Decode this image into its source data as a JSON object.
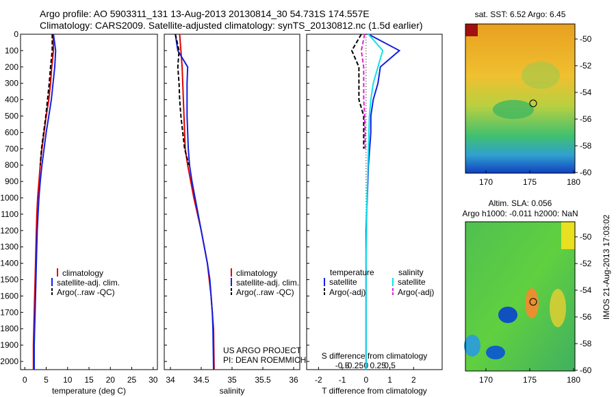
{
  "header": {
    "line1": "Argo profile: AO 5903311_131 13-Aug-2013 20130814_30 54.731S 174.557E",
    "line2": "Climatology: CARS2009. Satellite-adjusted climatology: synTS_20130812.nc (1.5d earlier)"
  },
  "colors": {
    "climatology": "#dd0000",
    "satellite": "#1020e0",
    "argo": "#000000",
    "satellite_s": "#10e0e8",
    "argo_s": "#e020d0"
  },
  "depth_ticks": [
    "0",
    "100",
    "200",
    "300",
    "400",
    "500",
    "600",
    "700",
    "800",
    "900",
    "1000",
    "1100",
    "1200",
    "1300",
    "1400",
    "1500",
    "1600",
    "1700",
    "1800",
    "1900",
    "2000"
  ],
  "panel_temperature": {
    "xlabel": "temperature (deg C)",
    "xticks": [
      "0",
      "5",
      "10",
      "15",
      "20",
      "25",
      "30"
    ],
    "legend": [
      "climatology",
      "satellite-adj. clim.",
      "Argo(..raw -QC)"
    ]
  },
  "panel_salinity": {
    "xlabel": "salinity",
    "xticks": [
      "34",
      "34.5",
      "35",
      "35.5",
      "36"
    ],
    "legend": [
      "climatology",
      "satellite-adj. clim.",
      "Argo(..raw -QC)"
    ],
    "credit1": "US ARGO PROJECT",
    "credit2": "PI: DEAN ROEMMICH"
  },
  "panel_difference": {
    "xlabel": "T difference from climatology",
    "s_label": "S difference from climatology",
    "t_ticks": [
      "-2",
      "-1",
      "0",
      "1",
      "2"
    ],
    "s_ticks": [
      "-0.5",
      "-0.25",
      "0",
      "0.25",
      "0.5"
    ],
    "legend_t_title": "temperature",
    "legend_s_title": "salinity",
    "legend_t": [
      "satellite",
      "Argo(-adj)"
    ],
    "legend_s": [
      "satellite",
      "Argo(-adj)"
    ]
  },
  "map_sst": {
    "title": "sat. SST: 6.52  Argo: 6.45",
    "yticks": [
      "-50",
      "-52",
      "-54",
      "-56",
      "-58",
      "-60"
    ],
    "xticks": [
      "170",
      "175",
      "180"
    ]
  },
  "map_sla": {
    "title1": "Altim. SLA: 0.056",
    "title2": "Argo h1000: -0.011  h2000: NaN",
    "yticks": [
      "-50",
      "-52",
      "-54",
      "-56",
      "-58",
      "-60"
    ],
    "xticks": [
      "170",
      "175",
      "180"
    ]
  },
  "stamp": "IMOS 21-Aug-2013 17:03:02",
  "chart_data": [
    {
      "type": "line",
      "title": "",
      "xlabel": "temperature (deg C)",
      "ylabel": "",
      "xlim": [
        -1,
        31
      ],
      "ylim": [
        2050,
        0
      ],
      "series": [
        {
          "name": "climatology",
          "x": [
            6.6,
            6.7,
            6.3,
            6.0,
            5.6,
            5.0,
            4.5,
            4.0,
            3.6,
            3.3,
            3.0,
            2.8,
            2.7,
            2.5,
            2.4,
            2.3,
            2.2,
            2.1,
            2.0,
            2.0
          ],
          "y": [
            0,
            100,
            200,
            300,
            400,
            500,
            600,
            700,
            800,
            900,
            1000,
            1100,
            1200,
            1400,
            1500,
            1600,
            1700,
            1800,
            1900,
            2050
          ]
        },
        {
          "name": "satellite-adj. clim.",
          "x": [
            6.7,
            7.2,
            7.0,
            6.6,
            6.2,
            5.6,
            5.0,
            4.5,
            4.0,
            3.6,
            3.3,
            3.1,
            2.9,
            2.7,
            2.6,
            2.5,
            2.4,
            2.3,
            2.2,
            2.2
          ],
          "y": [
            0,
            100,
            200,
            300,
            400,
            500,
            600,
            700,
            800,
            900,
            1000,
            1100,
            1200,
            1400,
            1500,
            1600,
            1700,
            1800,
            1900,
            2050
          ]
        },
        {
          "name": "Argo(..raw -QC)",
          "x": [
            6.4,
            6.4,
            6.0,
            5.7,
            5.3,
            4.9,
            4.4,
            3.9,
            3.6
          ],
          "y": [
            0,
            100,
            200,
            300,
            400,
            500,
            600,
            700,
            800
          ]
        }
      ]
    },
    {
      "type": "line",
      "title": "",
      "xlabel": "salinity",
      "ylabel": "",
      "xlim": [
        33.9,
        36.1
      ],
      "ylim": [
        2050,
        0
      ],
      "series": [
        {
          "name": "climatology",
          "x": [
            34.15,
            34.17,
            34.19,
            34.2,
            34.21,
            34.22,
            34.23,
            34.24,
            34.28,
            34.33,
            34.38,
            34.44,
            34.5,
            34.55,
            34.6,
            34.63,
            34.66,
            34.68,
            34.7,
            34.71
          ],
          "y": [
            0,
            100,
            200,
            300,
            400,
            500,
            600,
            700,
            800,
            900,
            1000,
            1100,
            1200,
            1300,
            1400,
            1500,
            1600,
            1700,
            1800,
            2050
          ]
        },
        {
          "name": "satellite-adj. clim.",
          "x": [
            34.08,
            34.12,
            34.28,
            34.27,
            34.27,
            34.27,
            34.28,
            34.29,
            34.31,
            34.35,
            34.4,
            34.45,
            34.5,
            34.55,
            34.6,
            34.64,
            34.66,
            34.68,
            34.69,
            34.7
          ],
          "y": [
            0,
            100,
            200,
            300,
            400,
            500,
            600,
            700,
            800,
            900,
            1000,
            1100,
            1200,
            1300,
            1400,
            1500,
            1600,
            1700,
            1800,
            2050
          ]
        },
        {
          "name": "Argo(..raw -QC)",
          "x": [
            34.08,
            34.14,
            34.12,
            34.14,
            34.15,
            34.17,
            34.2,
            34.23,
            34.3
          ],
          "y": [
            0,
            100,
            200,
            300,
            400,
            500,
            600,
            700,
            800
          ]
        }
      ]
    },
    {
      "type": "line",
      "title": "",
      "xlabel": "T difference from climatology",
      "ylabel": "",
      "xlim": [
        -2.5,
        3.2
      ],
      "ylim": [
        2050,
        0
      ],
      "series": [
        {
          "name": "temperature satellite",
          "x": [
            0.1,
            1.4,
            0.6,
            0.5,
            0.3,
            0.2,
            0.2,
            0.15,
            0.1,
            0.05,
            0.0,
            0.0,
            0.0,
            0.0,
            0.0
          ],
          "y": [
            0,
            100,
            200,
            300,
            400,
            500,
            600,
            700,
            800,
            1000,
            1200,
            1400,
            1600,
            1800,
            2050
          ]
        },
        {
          "name": "temperature Argo(-adj)",
          "x": [
            -0.2,
            -0.6,
            -0.3,
            -0.3,
            -0.3,
            -0.1,
            -0.1,
            -0.1
          ],
          "y": [
            0,
            100,
            200,
            300,
            400,
            500,
            600,
            700
          ]
        },
        {
          "name": "salinity satellite",
          "x": [
            0.05,
            0.35,
            0.25,
            0.15,
            0.1,
            0.07,
            0.06,
            0.05,
            0.04,
            0.02,
            0.01,
            0.0,
            0.0,
            0.0
          ],
          "y": [
            0,
            100,
            200,
            300,
            400,
            500,
            600,
            700,
            800,
            1000,
            1200,
            1400,
            1600,
            2050
          ]
        },
        {
          "name": "salinity Argo(-adj)",
          "x": [
            -0.03,
            -0.1,
            -0.05,
            -0.05,
            -0.05,
            -0.03,
            -0.02,
            -0.02
          ],
          "y": [
            0,
            100,
            200,
            300,
            400,
            500,
            600,
            700
          ]
        }
      ]
    }
  ]
}
